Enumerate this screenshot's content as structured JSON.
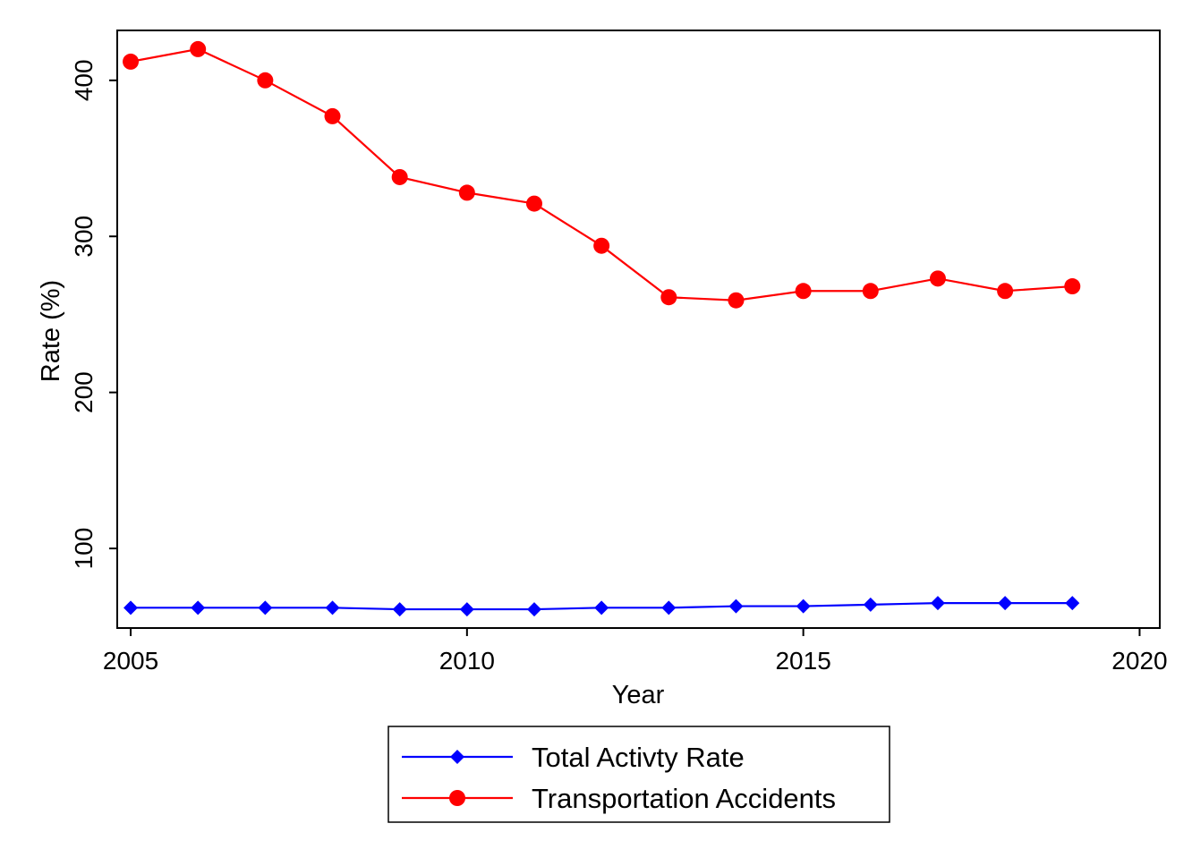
{
  "chart_data": {
    "type": "line",
    "title": "",
    "xlabel": "Year",
    "ylabel": "Rate (%)",
    "xlim": [
      2004.8,
      2020.3
    ],
    "ylim": [
      49,
      432
    ],
    "x_ticks": [
      2005,
      2010,
      2015,
      2020
    ],
    "y_ticks": [
      100,
      200,
      300,
      400
    ],
    "grid": false,
    "legend": "bottom",
    "x": [
      2005,
      2006,
      2007,
      2008,
      2009,
      2010,
      2011,
      2012,
      2013,
      2014,
      2015,
      2016,
      2017,
      2018,
      2019
    ],
    "series": [
      {
        "name": "Total Activty Rate",
        "color": "#0000ff",
        "marker": "diamond",
        "values": [
          62,
          62,
          62,
          62,
          61,
          61,
          61,
          62,
          62,
          63,
          63,
          64,
          65,
          65,
          65
        ]
      },
      {
        "name": "Transportation Accidents",
        "color": "#ff0000",
        "marker": "circle",
        "values": [
          412,
          420,
          400,
          377,
          338,
          328,
          321,
          294,
          261,
          259,
          265,
          265,
          273,
          265,
          268
        ]
      }
    ]
  }
}
